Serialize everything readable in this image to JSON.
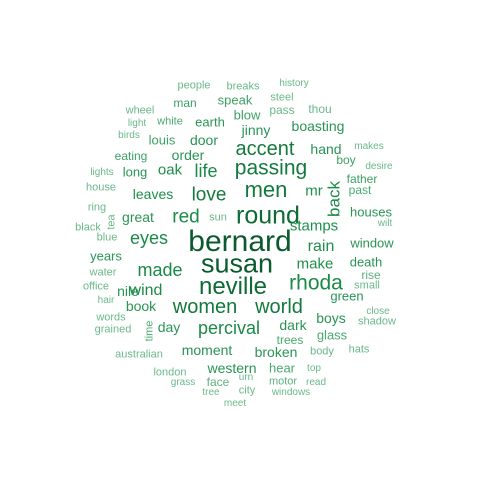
{
  "words": [
    {
      "text": "bernard",
      "color": "#0b5a2e"
    },
    {
      "text": "susan",
      "color": "#0b5a2e"
    },
    {
      "text": "round",
      "color": "#0e6b35"
    },
    {
      "text": "neville",
      "color": "#0e6b35"
    },
    {
      "text": "men",
      "color": "#137a3e"
    },
    {
      "text": "passing",
      "color": "#137a3e"
    },
    {
      "text": "accent",
      "color": "#137a3e"
    },
    {
      "text": "rhoda",
      "color": "#1a8a47"
    },
    {
      "text": "women",
      "color": "#137a3e"
    },
    {
      "text": "world",
      "color": "#137a3e"
    },
    {
      "text": "love",
      "color": "#137a3e"
    },
    {
      "text": "life",
      "color": "#1a8a47"
    },
    {
      "text": "red",
      "color": "#1a8a47"
    },
    {
      "text": "made",
      "color": "#1a8a47"
    },
    {
      "text": "percival",
      "color": "#1a8a47"
    },
    {
      "text": "eyes",
      "color": "#1a8a47"
    },
    {
      "text": "wind",
      "color": "#1a8a47"
    },
    {
      "text": "back",
      "color": "#1a8a47"
    },
    {
      "text": "stamps",
      "color": "#1e8f4b"
    },
    {
      "text": "rain",
      "color": "#1e8f4b"
    },
    {
      "text": "make",
      "color": "#1e8f4b"
    },
    {
      "text": "mr",
      "color": "#1e8f4b"
    },
    {
      "text": "oak",
      "color": "#1e8f4b"
    },
    {
      "text": "leaves",
      "color": "#1e8f4b"
    },
    {
      "text": "great",
      "color": "#2a9455"
    },
    {
      "text": "order",
      "color": "#2a9455"
    },
    {
      "text": "door",
      "color": "#2a9455"
    },
    {
      "text": "jinny",
      "color": "#2a9455"
    },
    {
      "text": "boasting",
      "color": "#2a9455"
    },
    {
      "text": "hand",
      "color": "#2a9455"
    },
    {
      "text": "houses",
      "color": "#2a9455"
    },
    {
      "text": "window",
      "color": "#2a9455"
    },
    {
      "text": "death",
      "color": "#2a9455"
    },
    {
      "text": "green",
      "color": "#2a9455"
    },
    {
      "text": "boys",
      "color": "#2a9455"
    },
    {
      "text": "dark",
      "color": "#2a9455"
    },
    {
      "text": "moment",
      "color": "#2a9455"
    },
    {
      "text": "broken",
      "color": "#2a9455"
    },
    {
      "text": "western",
      "color": "#2a9455"
    },
    {
      "text": "day",
      "color": "#2a9455"
    },
    {
      "text": "book",
      "color": "#2a9455"
    },
    {
      "text": "nile",
      "color": "#2a9455"
    },
    {
      "text": "years",
      "color": "#2a9455"
    },
    {
      "text": "long",
      "color": "#2a9455"
    },
    {
      "text": "eating",
      "color": "#3c9f64"
    },
    {
      "text": "louis",
      "color": "#3c9f64"
    },
    {
      "text": "earth",
      "color": "#2a9455"
    },
    {
      "text": "blow",
      "color": "#3c9f64"
    },
    {
      "text": "speak",
      "color": "#3c9f64"
    },
    {
      "text": "man",
      "color": "#3c9f64"
    },
    {
      "text": "white",
      "color": "#4aa870"
    },
    {
      "text": "boy",
      "color": "#3c9f64"
    },
    {
      "text": "father",
      "color": "#3c9f64"
    },
    {
      "text": "past",
      "color": "#4aa870"
    },
    {
      "text": "glass",
      "color": "#4aa870"
    },
    {
      "text": "trees",
      "color": "#4aa870"
    },
    {
      "text": "hear",
      "color": "#4aa870"
    },
    {
      "text": "time",
      "color": "#4aa870"
    },
    {
      "text": "rise",
      "color": "#5cb17d"
    },
    {
      "text": "small",
      "color": "#6ab98a"
    },
    {
      "text": "close",
      "color": "#6ab98a"
    },
    {
      "text": "shadow",
      "color": "#6ab98a"
    },
    {
      "text": "hats",
      "color": "#6ab98a"
    },
    {
      "text": "body",
      "color": "#6ab98a"
    },
    {
      "text": "top",
      "color": "#6ab98a"
    },
    {
      "text": "read",
      "color": "#6ab98a"
    },
    {
      "text": "motor",
      "color": "#5cb17d"
    },
    {
      "text": "urn",
      "color": "#6ab98a"
    },
    {
      "text": "city",
      "color": "#6ab98a"
    },
    {
      "text": "windows",
      "color": "#6ab98a"
    },
    {
      "text": "face",
      "color": "#5cb17d"
    },
    {
      "text": "grass",
      "color": "#6ab98a"
    },
    {
      "text": "tree",
      "color": "#6ab98a"
    },
    {
      "text": "meet",
      "color": "#6ab98a"
    },
    {
      "text": "london",
      "color": "#6ab98a"
    },
    {
      "text": "australian",
      "color": "#6ab98a"
    },
    {
      "text": "grained",
      "color": "#6ab98a"
    },
    {
      "text": "words",
      "color": "#6ab98a"
    },
    {
      "text": "hair",
      "color": "#6ab98a"
    },
    {
      "text": "office",
      "color": "#6ab98a"
    },
    {
      "text": "water",
      "color": "#6ab98a"
    },
    {
      "text": "blue",
      "color": "#6ab98a"
    },
    {
      "text": "black",
      "color": "#6ab98a"
    },
    {
      "text": "tea",
      "color": "#6ab98a"
    },
    {
      "text": "ring",
      "color": "#6ab98a"
    },
    {
      "text": "sun",
      "color": "#6ab98a"
    },
    {
      "text": "house",
      "color": "#6ab98a"
    },
    {
      "text": "lights",
      "color": "#6ab98a"
    },
    {
      "text": "birds",
      "color": "#6ab98a"
    },
    {
      "text": "light",
      "color": "#6ab98a"
    },
    {
      "text": "wheel",
      "color": "#6ab98a"
    },
    {
      "text": "people",
      "color": "#6ab98a"
    },
    {
      "text": "breaks",
      "color": "#6ab98a"
    },
    {
      "text": "history",
      "color": "#6ab98a"
    },
    {
      "text": "steel",
      "color": "#6ab98a"
    },
    {
      "text": "pass",
      "color": "#6ab98a"
    },
    {
      "text": "thou",
      "color": "#6ab98a"
    },
    {
      "text": "makes",
      "color": "#6ab98a"
    },
    {
      "text": "desire",
      "color": "#6ab98a"
    },
    {
      "text": "wilt",
      "color": "#6ab98a"
    }
  ]
}
